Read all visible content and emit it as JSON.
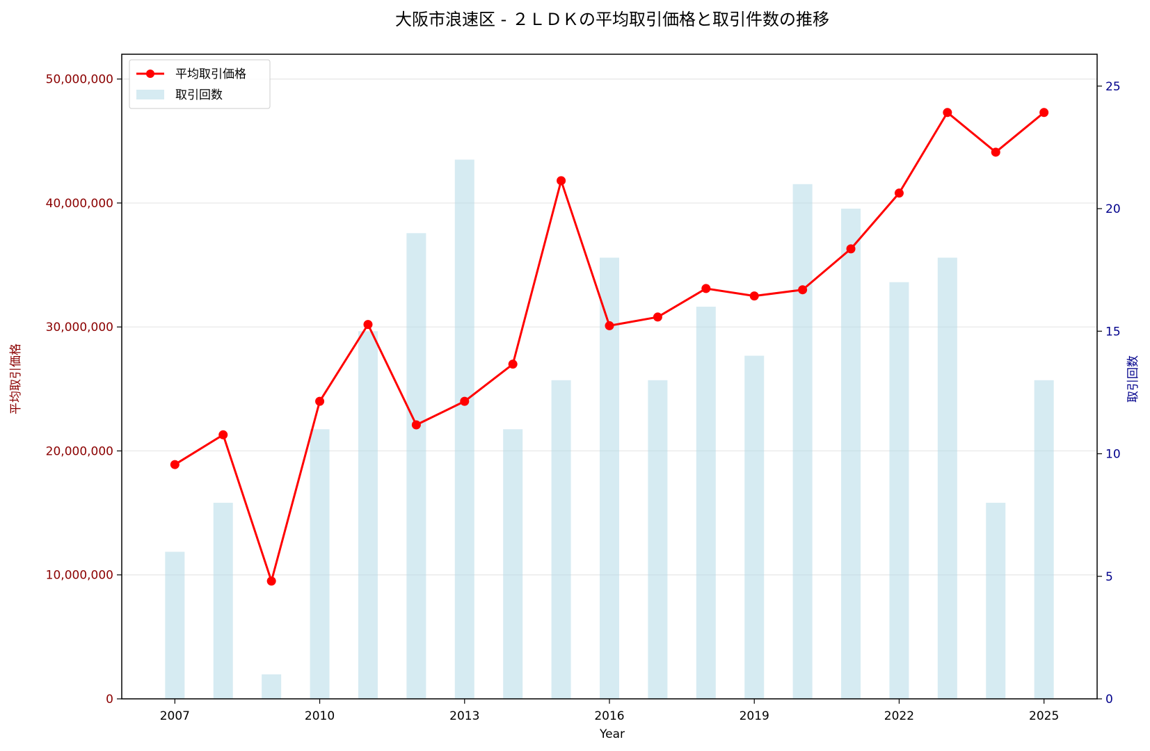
{
  "chart_data": {
    "type": "bar+line",
    "title": "大阪市浪速区 - ２ＬＤＫの平均取引価格と取引件数の推移",
    "xlabel": "Year",
    "ylabel_left": "平均取引価格",
    "ylabel_right": "取引回数",
    "x": [
      2007,
      2008,
      2009,
      2010,
      2011,
      2012,
      2013,
      2014,
      2015,
      2016,
      2017,
      2018,
      2019,
      2020,
      2021,
      2022,
      2023,
      2024,
      2025
    ],
    "x_ticks": [
      "2007",
      "2010",
      "2013",
      "2016",
      "2019",
      "2022",
      "2025"
    ],
    "ylim_left": [
      0,
      52000000
    ],
    "y_ticks_left": [
      "0",
      "10,000,000",
      "20,000,000",
      "30,000,000",
      "40,000,000",
      "50,000,000"
    ],
    "ylim_right": [
      0,
      26.3
    ],
    "y_ticks_right": [
      "0",
      "5",
      "10",
      "15",
      "20",
      "25"
    ],
    "grid": "horizontal",
    "legend_position": "top-left",
    "series": [
      {
        "name": "平均取引価格",
        "type": "line",
        "axis": "left",
        "color": "#ff0000",
        "values": [
          18900000,
          21300000,
          9500000,
          24000000,
          30200000,
          22100000,
          24000000,
          27000000,
          41800000,
          30100000,
          30800000,
          33100000,
          32500000,
          33000000,
          36300000,
          40800000,
          47300000,
          44100000,
          47300000
        ]
      },
      {
        "name": "取引回数",
        "type": "bar",
        "axis": "right",
        "color": "#add8e6",
        "values": [
          6,
          8,
          1,
          11,
          15,
          19,
          22,
          11,
          13,
          18,
          13,
          16,
          14,
          21,
          20,
          17,
          18,
          8,
          13
        ]
      }
    ]
  }
}
